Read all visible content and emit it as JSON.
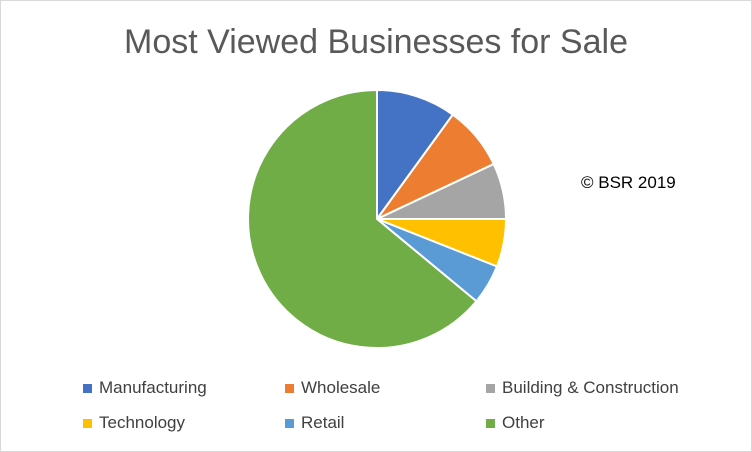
{
  "chart_data": {
    "type": "pie",
    "title": "Most Viewed Businesses for Sale",
    "credit": "© BSR 2019",
    "legend_placement": "bottom",
    "categories": [
      "Manufacturing",
      "Wholesale",
      "Building & Construction",
      "Technology",
      "Retail",
      "Other"
    ],
    "values": [
      10,
      8,
      7,
      6,
      5,
      64
    ],
    "unit": "percent",
    "colors": [
      "#4472c4",
      "#ed7d31",
      "#a5a5a5",
      "#ffc000",
      "#5b9bd5",
      "#70ad47"
    ]
  }
}
